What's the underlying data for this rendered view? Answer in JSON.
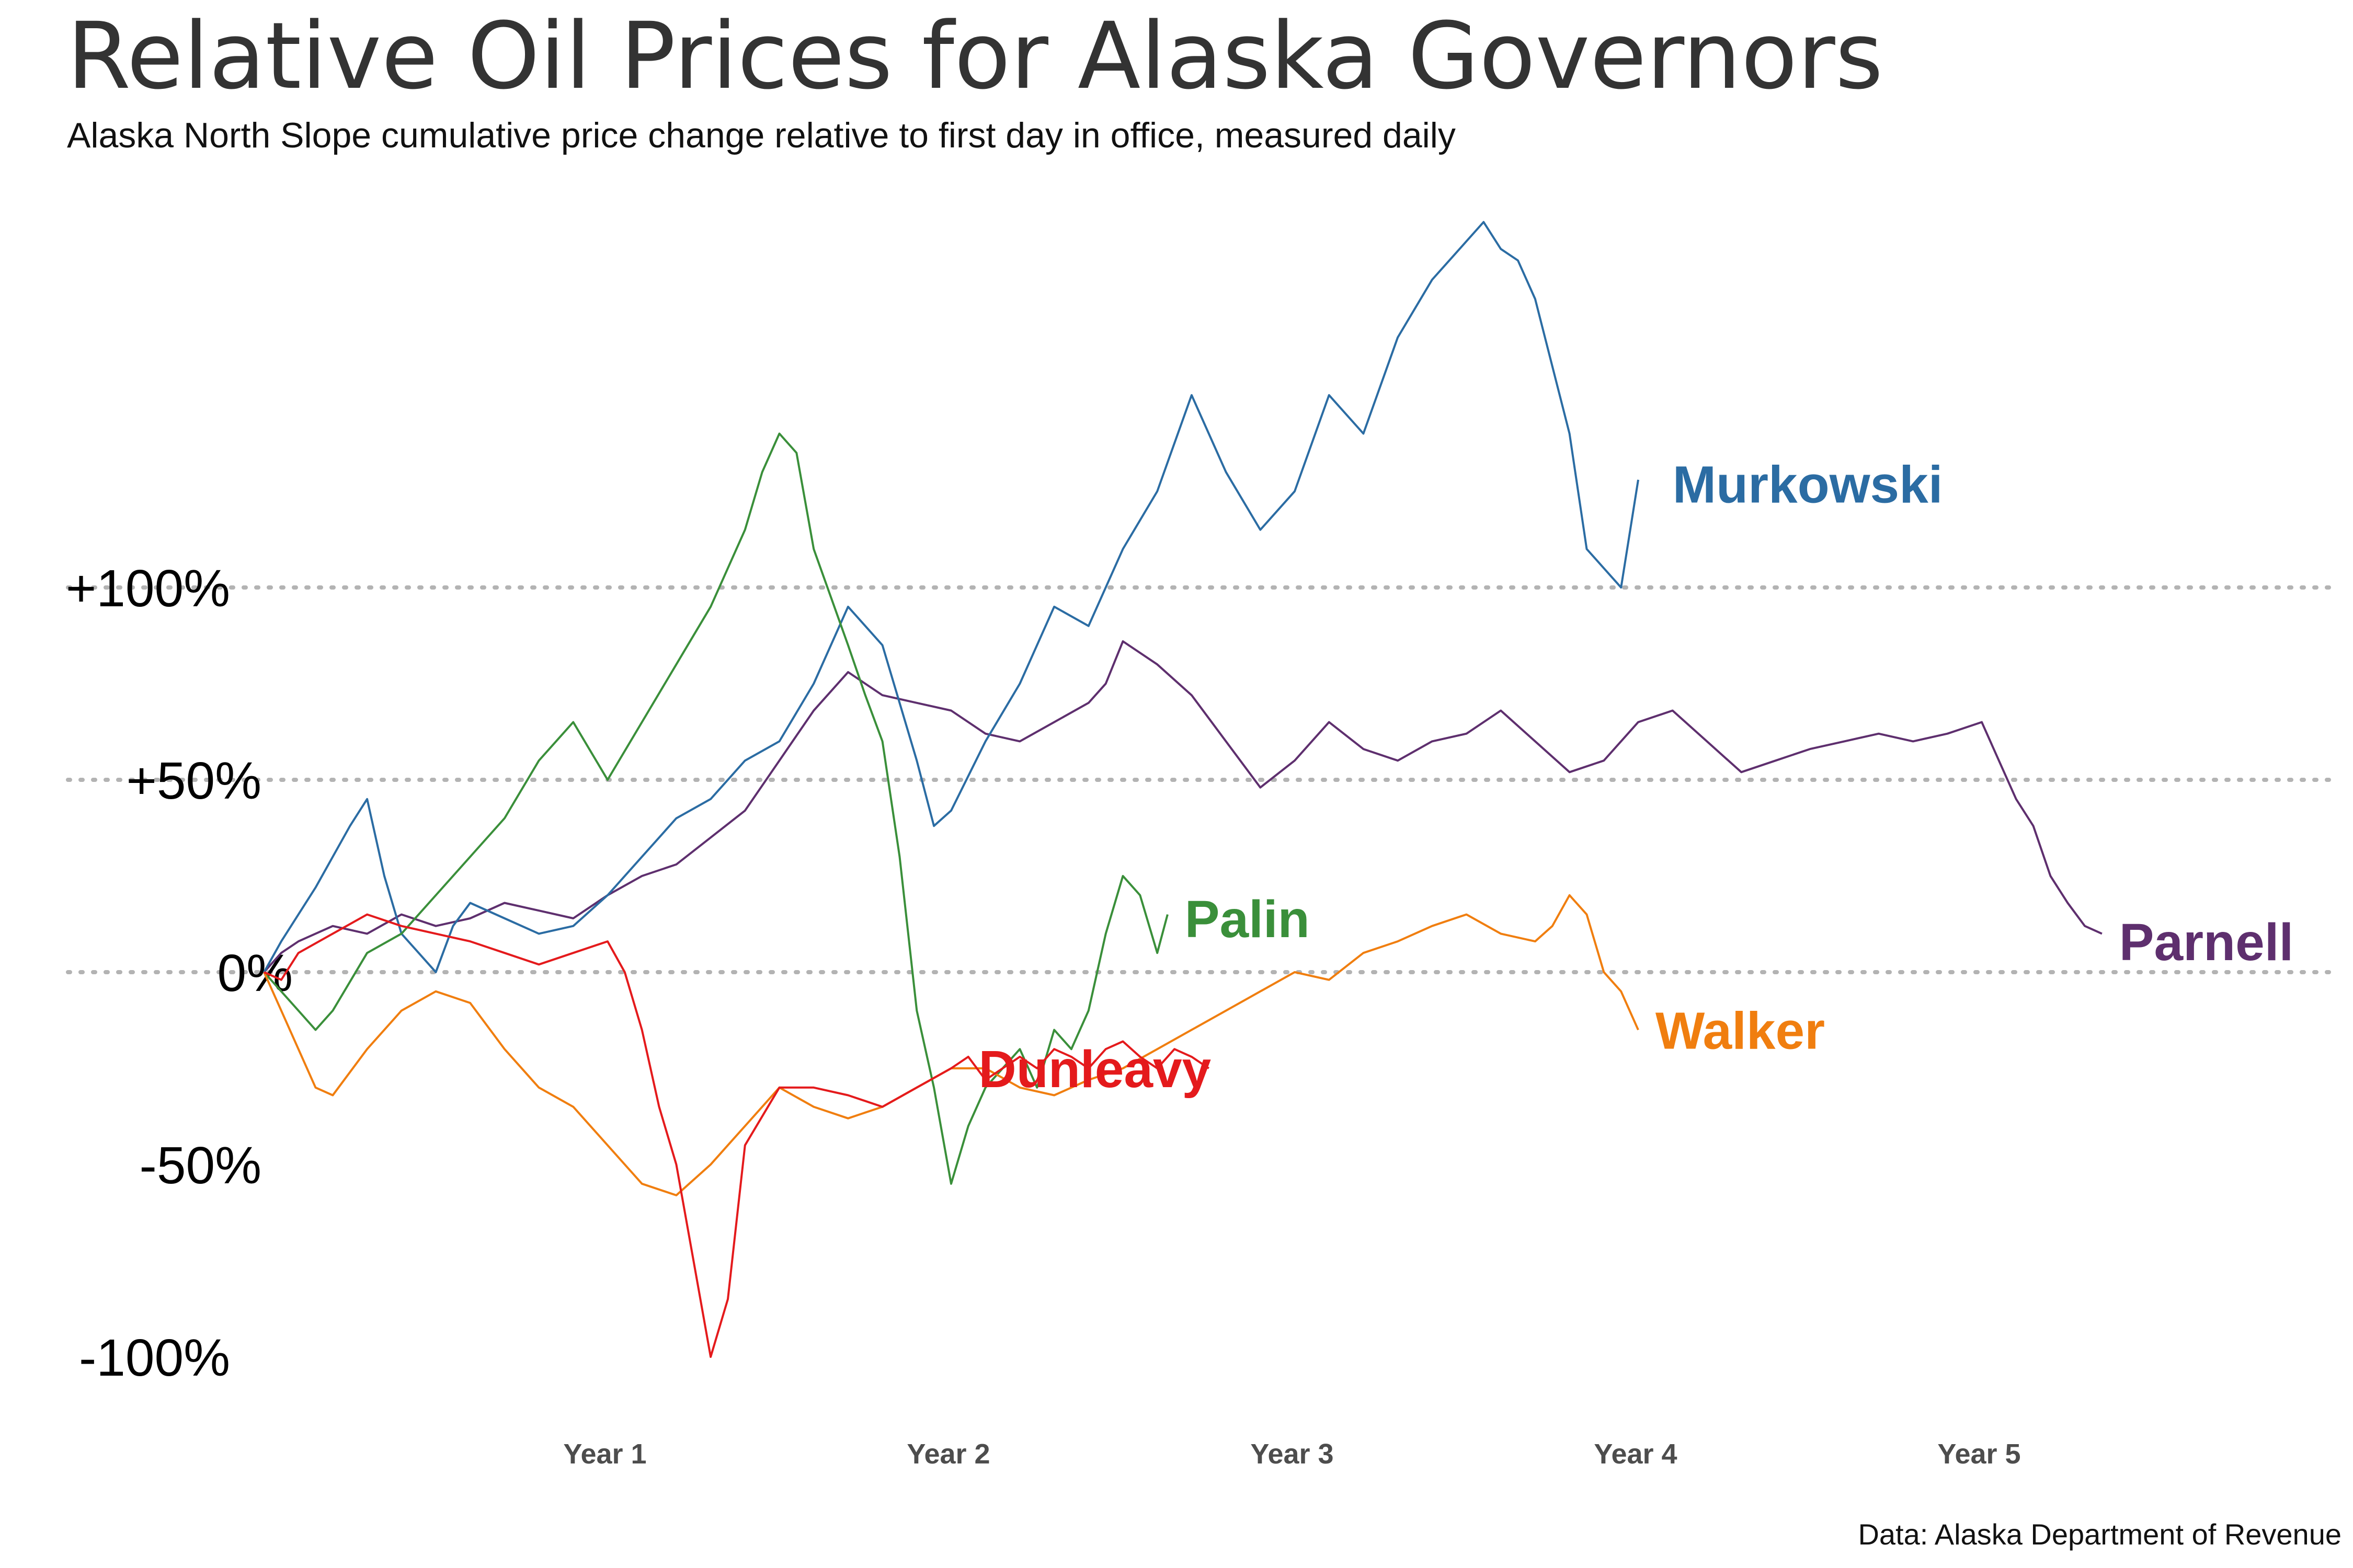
{
  "chart_data": {
    "type": "line",
    "title": "Relative Oil Prices for Alaska Governors",
    "subtitle": "Alaska North Slope cumulative price change relative to first day in office, measured daily",
    "caption": "Data: Alaska Department of Revenue",
    "xlabel": "",
    "ylabel": "",
    "x_unit": "years in office",
    "xlim": [
      0,
      6
    ],
    "ylim": [
      -112,
      205
    ],
    "y_gridlines": [
      0,
      50,
      100
    ],
    "grid": true,
    "legend": "direct labels at line ends",
    "y_ticks": [
      {
        "value": 100,
        "label": "+100%"
      },
      {
        "value": 50,
        "label": "+50%"
      },
      {
        "value": 0,
        "label": "0%"
      },
      {
        "value": -50,
        "label": "-50%"
      },
      {
        "value": -100,
        "label": "-100%"
      }
    ],
    "x_ticks": [
      {
        "value": 1,
        "label": "Year 1"
      },
      {
        "value": 2,
        "label": "Year 2"
      },
      {
        "value": 3,
        "label": "Year 3"
      },
      {
        "value": 4,
        "label": "Year 4"
      },
      {
        "value": 5,
        "label": "Year 5"
      }
    ],
    "series": [
      {
        "name": "Parnell",
        "color": "#5e2f6e",
        "label_at": [
          5.4,
          8
        ],
        "x": [
          0,
          0.05,
          0.1,
          0.2,
          0.3,
          0.4,
          0.5,
          0.6,
          0.7,
          0.8,
          0.9,
          1.0,
          1.1,
          1.2,
          1.3,
          1.4,
          1.5,
          1.6,
          1.7,
          1.8,
          1.9,
          2.0,
          2.1,
          2.2,
          2.3,
          2.4,
          2.45,
          2.5,
          2.6,
          2.7,
          2.8,
          2.9,
          3.0,
          3.1,
          3.2,
          3.3,
          3.4,
          3.5,
          3.6,
          3.7,
          3.8,
          3.9,
          4.0,
          4.1,
          4.2,
          4.3,
          4.4,
          4.5,
          4.6,
          4.7,
          4.8,
          4.9,
          5.0,
          5.05,
          5.1,
          5.15,
          5.2,
          5.25,
          5.3,
          5.35
        ],
        "y": [
          0,
          5,
          8,
          12,
          10,
          15,
          12,
          14,
          18,
          16,
          14,
          20,
          25,
          28,
          35,
          42,
          55,
          68,
          78,
          72,
          70,
          68,
          62,
          60,
          65,
          70,
          75,
          86,
          80,
          72,
          60,
          48,
          55,
          65,
          58,
          55,
          60,
          62,
          68,
          60,
          52,
          55,
          65,
          68,
          60,
          52,
          55,
          58,
          60,
          62,
          60,
          62,
          65,
          55,
          45,
          38,
          25,
          18,
          12,
          10
        ]
      },
      {
        "name": "Murkowski",
        "color": "#2b6ca3",
        "label_at": [
          4.1,
          127
        ],
        "x": [
          0,
          0.05,
          0.1,
          0.15,
          0.2,
          0.25,
          0.3,
          0.35,
          0.4,
          0.45,
          0.5,
          0.55,
          0.6,
          0.7,
          0.8,
          0.9,
          1.0,
          1.1,
          1.2,
          1.3,
          1.4,
          1.5,
          1.6,
          1.7,
          1.8,
          1.9,
          1.95,
          2.0,
          2.1,
          2.2,
          2.3,
          2.4,
          2.5,
          2.6,
          2.7,
          2.8,
          2.9,
          3.0,
          3.1,
          3.2,
          3.3,
          3.4,
          3.5,
          3.55,
          3.6,
          3.65,
          3.7,
          3.8,
          3.85,
          3.9,
          3.95,
          4.0
        ],
        "y": [
          0,
          8,
          15,
          22,
          30,
          38,
          45,
          25,
          10,
          5,
          0,
          12,
          18,
          14,
          10,
          12,
          20,
          30,
          40,
          45,
          55,
          60,
          75,
          95,
          85,
          55,
          38,
          42,
          60,
          75,
          95,
          90,
          110,
          125,
          150,
          130,
          115,
          125,
          150,
          140,
          165,
          180,
          190,
          195,
          188,
          185,
          175,
          140,
          110,
          105,
          100,
          128
        ]
      },
      {
        "name": "Palin",
        "color": "#3a8f3a",
        "label_at": [
          2.68,
          14
        ],
        "x": [
          0,
          0.05,
          0.1,
          0.15,
          0.2,
          0.3,
          0.4,
          0.5,
          0.6,
          0.7,
          0.8,
          0.9,
          1.0,
          1.1,
          1.2,
          1.3,
          1.4,
          1.45,
          1.5,
          1.55,
          1.6,
          1.7,
          1.75,
          1.8,
          1.85,
          1.9,
          1.95,
          2.0,
          2.05,
          2.1,
          2.15,
          2.2,
          2.25,
          2.3,
          2.35,
          2.4,
          2.45,
          2.5,
          2.55,
          2.6,
          2.63
        ],
        "y": [
          0,
          -5,
          -10,
          -15,
          -10,
          5,
          10,
          20,
          30,
          40,
          55,
          65,
          50,
          65,
          80,
          95,
          115,
          130,
          140,
          135,
          110,
          85,
          72,
          60,
          30,
          -10,
          -30,
          -55,
          -40,
          -30,
          -25,
          -20,
          -30,
          -15,
          -20,
          -10,
          10,
          25,
          20,
          5,
          15
        ]
      },
      {
        "name": "Walker",
        "color": "#f07e0f",
        "label_at": [
          4.05,
          -15
        ],
        "x": [
          0,
          0.05,
          0.1,
          0.15,
          0.2,
          0.3,
          0.4,
          0.5,
          0.6,
          0.7,
          0.8,
          0.9,
          1.0,
          1.1,
          1.2,
          1.3,
          1.4,
          1.5,
          1.6,
          1.7,
          1.8,
          1.9,
          2.0,
          2.1,
          2.2,
          2.3,
          2.4,
          2.5,
          2.6,
          2.7,
          2.8,
          2.9,
          3.0,
          3.1,
          3.2,
          3.3,
          3.4,
          3.5,
          3.6,
          3.7,
          3.75,
          3.8,
          3.85,
          3.9,
          3.95,
          4.0
        ],
        "y": [
          0,
          -10,
          -20,
          -30,
          -32,
          -20,
          -10,
          -5,
          -8,
          -20,
          -30,
          -35,
          -45,
          -55,
          -58,
          -50,
          -40,
          -30,
          -35,
          -38,
          -35,
          -30,
          -25,
          -25,
          -30,
          -32,
          -28,
          -25,
          -20,
          -15,
          -10,
          -5,
          0,
          -2,
          5,
          8,
          12,
          15,
          10,
          8,
          12,
          20,
          15,
          0,
          -5,
          -15
        ]
      },
      {
        "name": "Dunleavy",
        "color": "#e41a1c",
        "label_at": [
          2.08,
          -25
        ],
        "x": [
          0,
          0.05,
          0.1,
          0.2,
          0.3,
          0.4,
          0.5,
          0.6,
          0.7,
          0.8,
          0.9,
          1.0,
          1.05,
          1.1,
          1.15,
          1.2,
          1.25,
          1.3,
          1.35,
          1.4,
          1.5,
          1.6,
          1.7,
          1.8,
          1.9,
          2.0,
          2.05,
          2.1,
          2.15,
          2.2,
          2.25,
          2.3,
          2.35,
          2.4,
          2.45,
          2.5,
          2.55,
          2.6,
          2.65,
          2.7,
          2.75
        ],
        "y": [
          0,
          -2,
          5,
          10,
          15,
          12,
          10,
          8,
          5,
          2,
          5,
          8,
          0,
          -15,
          -35,
          -50,
          -75,
          -100,
          -85,
          -45,
          -30,
          -30,
          -32,
          -35,
          -30,
          -25,
          -22,
          -28,
          -25,
          -22,
          -25,
          -20,
          -22,
          -25,
          -20,
          -18,
          -22,
          -25,
          -20,
          -22,
          -25
        ]
      }
    ]
  }
}
